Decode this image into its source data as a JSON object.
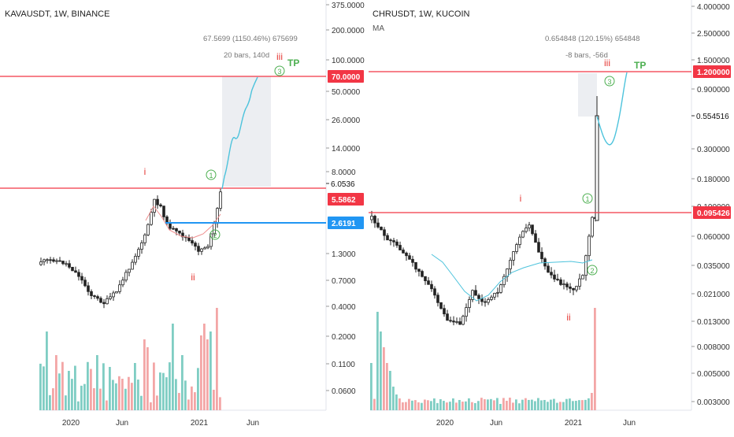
{
  "colors": {
    "red": "#f23645",
    "blue": "#2196f3",
    "green": "#26a69a",
    "wave_green": "#4caf50",
    "wave_red": "#e53935",
    "projection": "#4dc3dc",
    "ma_left": "#ef8f8f",
    "ma_right": "#4dc3dc",
    "vol_up": "#7fcdc3",
    "vol_down": "#f3a6a6",
    "candle": "#222222",
    "axis_text": "#333333",
    "measure_box": "#e6e8ed"
  },
  "chart_data": [
    {
      "type": "candlestick",
      "title": "KAVAUSDT, 1W, BINANCE",
      "yscale": "log",
      "y_ticks": [
        "375.0000",
        "200.0000",
        "100.0000",
        "50.0000",
        "26.0000",
        "14.0000",
        "8.0000",
        "1.3000",
        "0.7000",
        "0.4000",
        "0.2000",
        "0.1100",
        "0.0600"
      ],
      "price_labels": [
        {
          "text": "70.0000",
          "style": "red"
        },
        {
          "text": "6.0536",
          "style": "plain"
        },
        {
          "text": "5.5862",
          "style": "red"
        },
        {
          "text": "2.6191",
          "style": "blue"
        }
      ],
      "x_ticks": [
        "2020",
        "Jun",
        "2021",
        "Jun"
      ],
      "measure": {
        "line1": "67.5699 (1150.46%) 675699",
        "line2": "20 bars, 140d"
      },
      "wave_labels": [
        "i",
        "ii",
        "iii",
        "1",
        "2",
        "3"
      ],
      "target_label": "TP",
      "levels": {
        "tp": 70.0,
        "resistance": 5.5862,
        "support": 2.6191
      }
    },
    {
      "type": "candlestick",
      "title": "CHRUSDT, 1W, KUCOIN",
      "subtitle": "MA",
      "yscale": "log",
      "y_ticks": [
        "4.000000",
        "2.500000",
        "1.500000",
        "0.900000",
        "0.300000",
        "0.180000",
        "0.100000",
        "0.060000",
        "0.035000",
        "0.021000",
        "0.013000",
        "0.008000",
        "0.005000",
        "0.003000"
      ],
      "price_labels": [
        {
          "text": "1.200000",
          "style": "red"
        },
        {
          "text": "0.554516",
          "style": "plain"
        },
        {
          "text": "0.095426",
          "style": "red"
        }
      ],
      "x_ticks": [
        "2020",
        "Jun",
        "2021",
        "Jun"
      ],
      "measure": {
        "line1": "0.654848 (120.15%) 654848",
        "line2": "-8 bars, -56d"
      },
      "wave_labels": [
        "i",
        "ii",
        "iii",
        "1",
        "2",
        "3"
      ],
      "target_label": "TP",
      "levels": {
        "tp": 1.2,
        "resistance": 0.095426
      }
    }
  ]
}
